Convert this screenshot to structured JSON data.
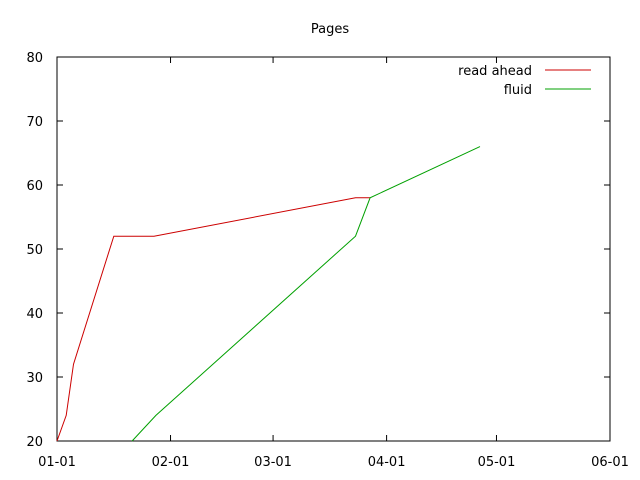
{
  "chart_data": {
    "type": "line",
    "title": "Pages",
    "xlabel": "",
    "ylabel": "",
    "x_ticks": [
      "01-01",
      "02-01",
      "03-01",
      "04-01",
      "05-01",
      "06-01"
    ],
    "x_tick_days": [
      0,
      31,
      59,
      90,
      120,
      151
    ],
    "xlim_days": [
      0,
      151
    ],
    "y_ticks": [
      20,
      30,
      40,
      50,
      60,
      70,
      80
    ],
    "ylim": [
      20,
      80
    ],
    "grid": false,
    "legend_position": "top-right",
    "series": [
      {
        "name": "read ahead",
        "color": "#cc0000",
        "points": [
          {
            "x": 0,
            "y": 20
          },
          {
            "x": 2.5,
            "y": 24
          },
          {
            "x": 4.5,
            "y": 32
          },
          {
            "x": 15.5,
            "y": 52
          },
          {
            "x": 26.5,
            "y": 52
          },
          {
            "x": 81.5,
            "y": 58
          },
          {
            "x": 85.5,
            "y": 58
          }
        ]
      },
      {
        "name": "fluid",
        "color": "#00a000",
        "points": [
          {
            "x": 20.5,
            "y": 20
          },
          {
            "x": 27,
            "y": 24
          },
          {
            "x": 81.5,
            "y": 52
          },
          {
            "x": 85.5,
            "y": 58
          },
          {
            "x": 115.5,
            "y": 66
          }
        ]
      }
    ]
  }
}
